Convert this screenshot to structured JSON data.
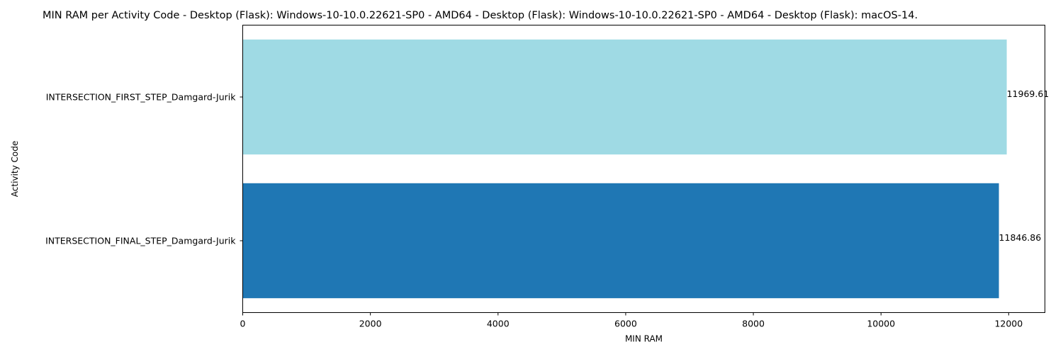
{
  "chart_data": {
    "type": "bar",
    "orientation": "horizontal",
    "title": "MIN RAM per Activity Code - Desktop (Flask): Windows-10-10.0.22621-SP0 - AMD64 - Desktop (Flask): Windows-10-10.0.22621-SP0 - AMD64 - Desktop (Flask): macOS-14.",
    "xlabel": "MIN RAM",
    "ylabel": "Activity Code",
    "xlim": [
      0,
      12568
    ],
    "xticks": [
      0,
      2000,
      4000,
      6000,
      8000,
      10000,
      12000
    ],
    "categories": [
      "INTERSECTION_FIRST_STEP_Damgard-Jurik",
      "INTERSECTION_FINAL_STEP_Damgard-Jurik"
    ],
    "values": [
      11969.61,
      11846.86
    ],
    "value_labels": [
      "11969.61",
      "11846.86"
    ],
    "colors": [
      "#9fdae4",
      "#1f77b4"
    ],
    "grid": false
  }
}
